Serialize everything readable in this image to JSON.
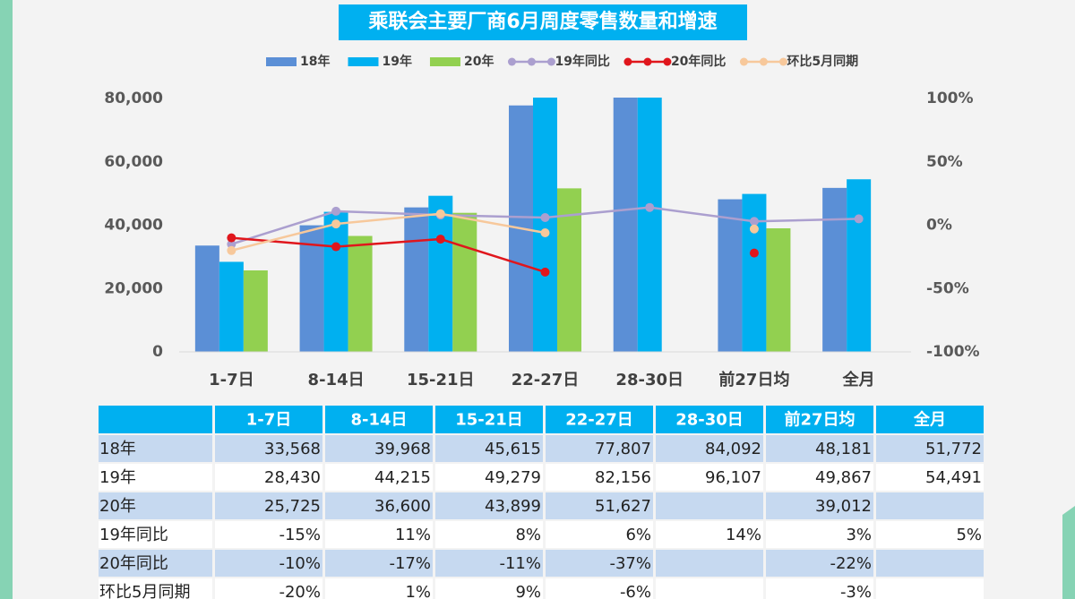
{
  "chart_data": {
    "type": "bar",
    "title": "乘联会主要厂商6月周度零售数量和增速",
    "categories": [
      "1-7日",
      "8-14日",
      "15-21日",
      "22-27日",
      "28-30日",
      "前27日均",
      "全月"
    ],
    "series": [
      {
        "name": "18年",
        "color": "#5b8fd6",
        "mark": "bar",
        "values": [
          33568,
          39968,
          45615,
          77807,
          84092,
          48181,
          51772
        ],
        "value_labels": [
          "33,568",
          "39,968",
          "45,615",
          "77,807",
          "84,092",
          "48,181",
          "51,772"
        ]
      },
      {
        "name": "19年",
        "color": "#00b0f0",
        "mark": "bar",
        "values": [
          28430,
          44215,
          49279,
          82156,
          96107,
          49867,
          54491
        ],
        "value_labels": [
          "28,430",
          "44,215",
          "49,279",
          "82,156",
          "96,107",
          "49,867",
          "54,491"
        ]
      },
      {
        "name": "20年",
        "color": "#92d050",
        "mark": "bar",
        "values": [
          25725,
          36600,
          43899,
          51627,
          null,
          39012,
          null
        ],
        "value_labels": [
          "25,725",
          "36,600",
          "43,899",
          "51,627",
          null,
          "39,012",
          null
        ]
      },
      {
        "name": "19年同比",
        "color": "#ab9fcf",
        "mark": "line",
        "axis": "y2",
        "values": [
          -15,
          11,
          8,
          6,
          14,
          3,
          5
        ],
        "value_labels": [
          "-15%",
          "11%",
          "8%",
          "6%",
          "14%",
          "3%",
          "5%"
        ]
      },
      {
        "name": "20年同比",
        "color": "#e0161c",
        "mark": "line",
        "axis": "y2",
        "values": [
          -10,
          -17,
          -11,
          -37,
          null,
          -22,
          null
        ],
        "value_labels": [
          "-10%",
          "-17%",
          "-11%",
          "-37%",
          null,
          "-22%",
          null
        ]
      },
      {
        "name": "环比5月同期",
        "color": "#f7c89b",
        "mark": "line",
        "axis": "y2",
        "values": [
          -20,
          1,
          9,
          -6,
          null,
          -3,
          null
        ],
        "value_labels": [
          "-20%",
          "1%",
          "9%",
          "-6%",
          null,
          "-3%",
          null
        ]
      }
    ],
    "ylim": [
      0,
      80000
    ],
    "yticks": [
      0,
      {
        "value": 20000,
        "label": "20,000"
      },
      {
        "value": 40000,
        "label": "40,000"
      },
      {
        "value": 60000,
        "label": "60,000"
      },
      {
        "value": 80000,
        "label": "80,000"
      }
    ],
    "y2lim": [
      -100,
      100
    ],
    "y2ticks": [
      {
        "value": -100,
        "label": "-100%"
      },
      {
        "value": -50,
        "label": "-50%"
      },
      {
        "value": 0,
        "label": "0%"
      },
      {
        "value": 50,
        "label": "50%"
      },
      {
        "value": 100,
        "label": "100%"
      }
    ],
    "grid": false
  }
}
